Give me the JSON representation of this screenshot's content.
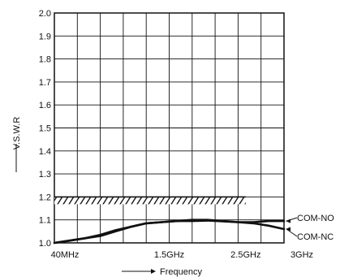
{
  "chart_data": {
    "type": "line",
    "xlabel": "Frequency",
    "ylabel": "V.S.W.R",
    "x_tick_labels": [
      {
        "label": "40MHz",
        "x": 0
      },
      {
        "label": "1.5GHz",
        "x": 1.5
      },
      {
        "label": "2.5GHz",
        "x": 2.5
      },
      {
        "label": "3GHz",
        "x": 3
      }
    ],
    "y_ticks": [
      "1.0",
      "1.1",
      "1.2",
      "1.3",
      "1.4",
      "1.5",
      "1.6",
      "1.7",
      "1.8",
      "1.9",
      "2.0"
    ],
    "xlim": [
      0,
      3
    ],
    "ylim": [
      1.0,
      2.0
    ],
    "grid": true,
    "spec_limit": {
      "y": 1.2,
      "x_end": 2.5
    },
    "series": [
      {
        "name": "COM-NO",
        "x": [
          0,
          0.2,
          0.4,
          0.6,
          0.8,
          1.0,
          1.2,
          1.4,
          1.6,
          1.8,
          2.0,
          2.2,
          2.4,
          2.6,
          2.8,
          3.0
        ],
        "y": [
          1.0,
          1.01,
          1.02,
          1.03,
          1.05,
          1.07,
          1.085,
          1.09,
          1.095,
          1.095,
          1.097,
          1.094,
          1.09,
          1.09,
          1.095,
          1.095
        ]
      },
      {
        "name": "COM-NC",
        "x": [
          0,
          0.2,
          0.4,
          0.6,
          0.8,
          1.0,
          1.2,
          1.4,
          1.6,
          1.8,
          2.0,
          2.2,
          2.4,
          2.6,
          2.8,
          3.0
        ],
        "y": [
          1.0,
          1.01,
          1.02,
          1.035,
          1.055,
          1.07,
          1.085,
          1.09,
          1.095,
          1.1,
          1.1,
          1.095,
          1.09,
          1.085,
          1.075,
          1.06
        ]
      }
    ]
  }
}
